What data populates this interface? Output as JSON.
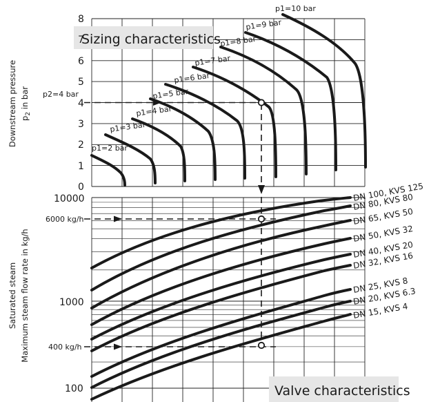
{
  "diagram": {
    "top_title": "Sizing characteristics",
    "bottom_title": "Valve characteristics",
    "top_axis": {
      "label_line1": "Downstream pressure",
      "label_line2_main": "p",
      "label_line2_sub": "2",
      "label_line2_rest": " in bar",
      "ticks": [
        "0",
        "1",
        "2",
        "3",
        "4",
        "5",
        "6",
        "7",
        "8"
      ]
    },
    "bottom_axis": {
      "label_line1": "Saturated steam",
      "label_line2": "Maximum steam flow rate  in kg/h",
      "ticks": [
        "100",
        "1000",
        "10000"
      ]
    },
    "inlet_pressure_labels": [
      "p1=2 bar",
      "p1=3 bar",
      "p1=4 bar",
      "p1=5 bar",
      "p1=6 bar",
      "p1=7 bar",
      "p1=8 bar",
      "p1=9 bar",
      "p1=10 bar"
    ],
    "valve_labels": [
      "DN 100, KVS 125",
      "DN 80, KVS 80",
      "DN 65, KVS 50",
      "DN 50, KVS 32",
      "DN 40, KVS 20",
      "DN 32, KVS 16",
      "DN 25, KVS 8",
      "DN 20, KVS 6.3",
      "DN 15, KVS 4"
    ],
    "example": {
      "p2_label": "p2=4 bar",
      "flow_label_1": "6000 kg/h",
      "flow_label_2": "400 kg/h"
    }
  }
}
